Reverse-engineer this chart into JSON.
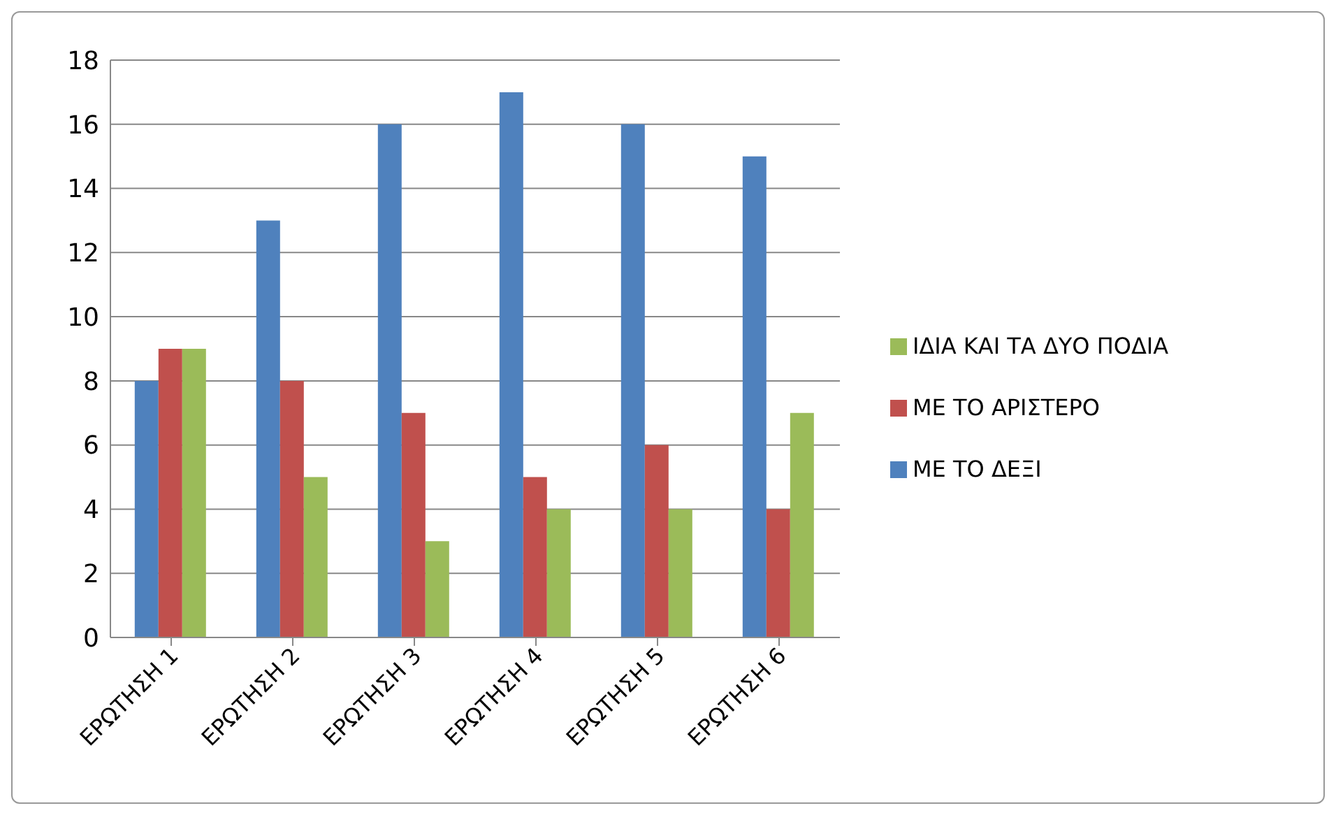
{
  "chart_data": {
    "type": "bar",
    "categories": [
      "ΕΡΩΤΗΣΗ 1",
      "ΕΡΩΤΗΣΗ 2",
      "ΕΡΩΤΗΣΗ 3",
      "ΕΡΩΤΗΣΗ 4",
      "ΕΡΩΤΗΣΗ 5",
      "ΕΡΩΤΗΣΗ 6"
    ],
    "series": [
      {
        "name": "ΜΕ ΤΟ ΔΕΞΙ",
        "color": "#4f81bd",
        "values": [
          8,
          13,
          16,
          17,
          16,
          15
        ]
      },
      {
        "name": "ΜΕ ΤΟ ΑΡΙΣΤΕΡΟ",
        "color": "#c0504d",
        "values": [
          9,
          8,
          7,
          5,
          6,
          4
        ]
      },
      {
        "name": "ΙΔΙΑ ΚΑΙ ΤΑ ΔΥΟ ΠΟΔΙΑ",
        "color": "#9bbb59",
        "values": [
          9,
          5,
          3,
          4,
          4,
          7
        ]
      }
    ],
    "ylim": [
      0,
      18
    ],
    "yticks": [
      0,
      2,
      4,
      6,
      8,
      10,
      12,
      14,
      16,
      18
    ],
    "grid": "y",
    "legend": "right"
  }
}
